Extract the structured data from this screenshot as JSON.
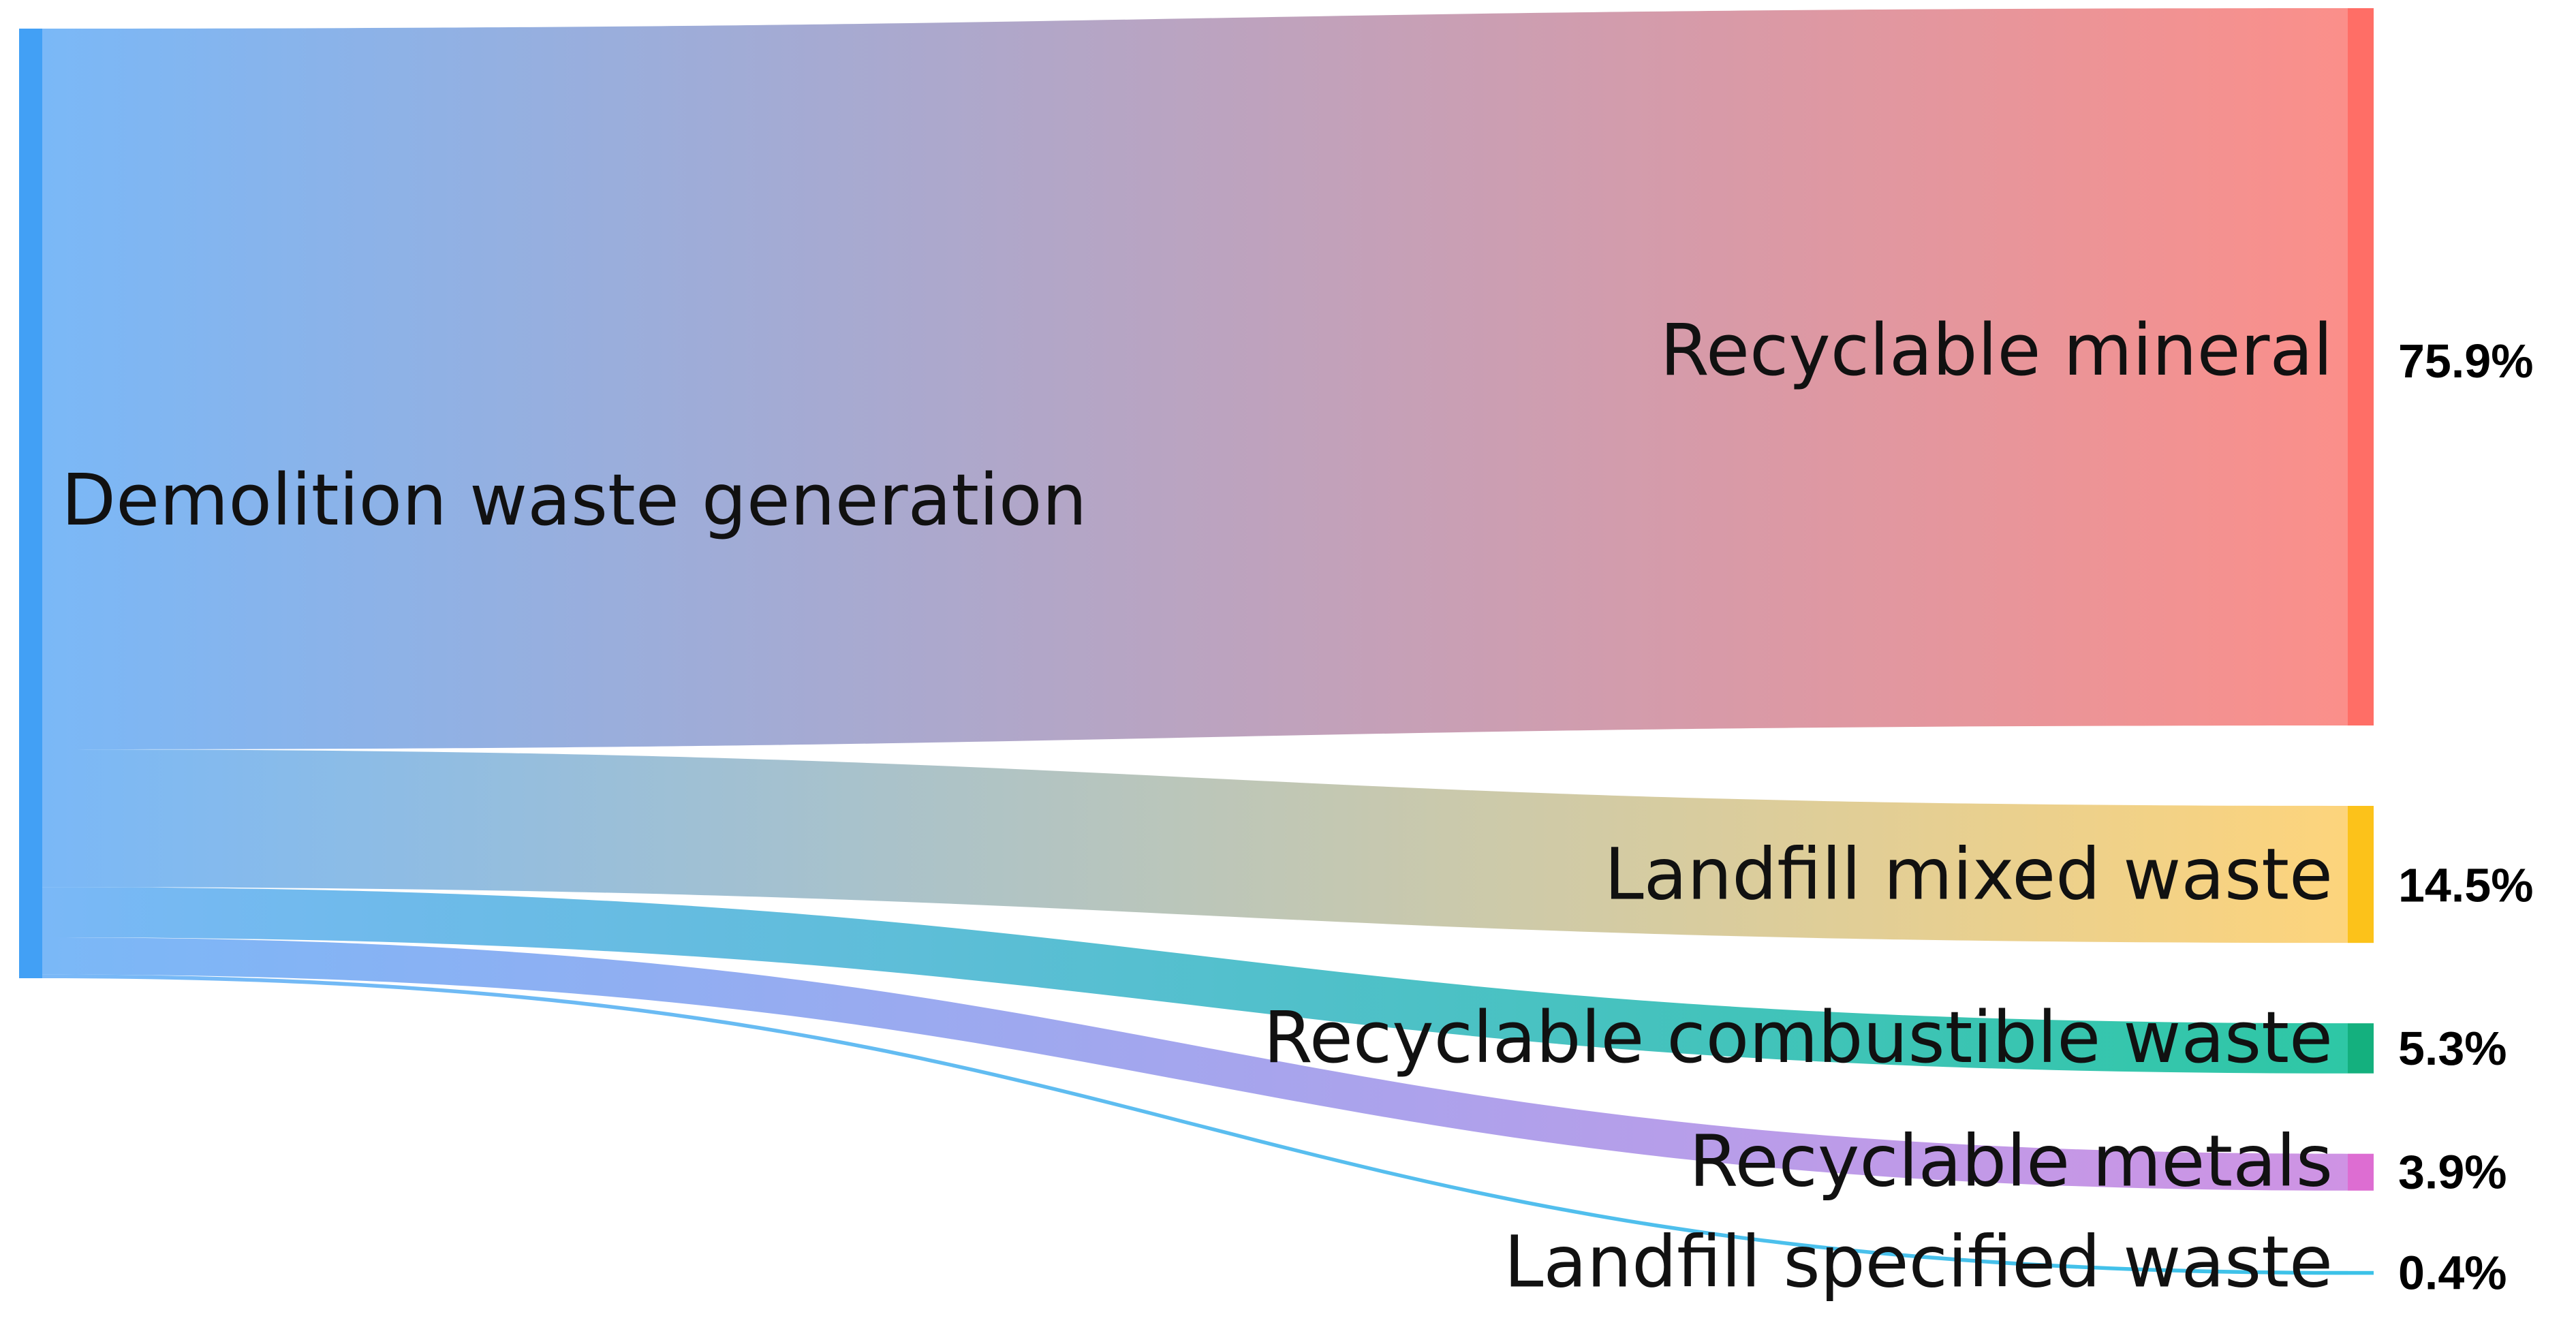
{
  "chart_data": {
    "type": "sankey",
    "source": {
      "name": "Demolition waste generation",
      "color": "#42a0f5"
    },
    "flows": [
      {
        "name": "Recyclable mineral",
        "value": 75.9,
        "label": "75.9%",
        "color": "#ff6e66",
        "flow_end": "#fb8f8a"
      },
      {
        "name": "Landfill mixed waste",
        "value": 14.5,
        "label": "14.5%",
        "color": "#fcc21a",
        "flow_end": "#fdd47c"
      },
      {
        "name": "Recyclable combustible waste",
        "value": 5.3,
        "label": "5.3%",
        "color": "#14b07e",
        "flow_end": "#2ec7a5"
      },
      {
        "name": "Recyclable metals",
        "value": 3.9,
        "label": "3.9%",
        "color": "#dd6dd2",
        "flow_end": "#cf93e4"
      },
      {
        "name": "Landfill specified waste",
        "value": 0.4,
        "label": "0.4%",
        "color": "#3cc2e8",
        "flow_end": "#3cc2e8"
      }
    ]
  }
}
